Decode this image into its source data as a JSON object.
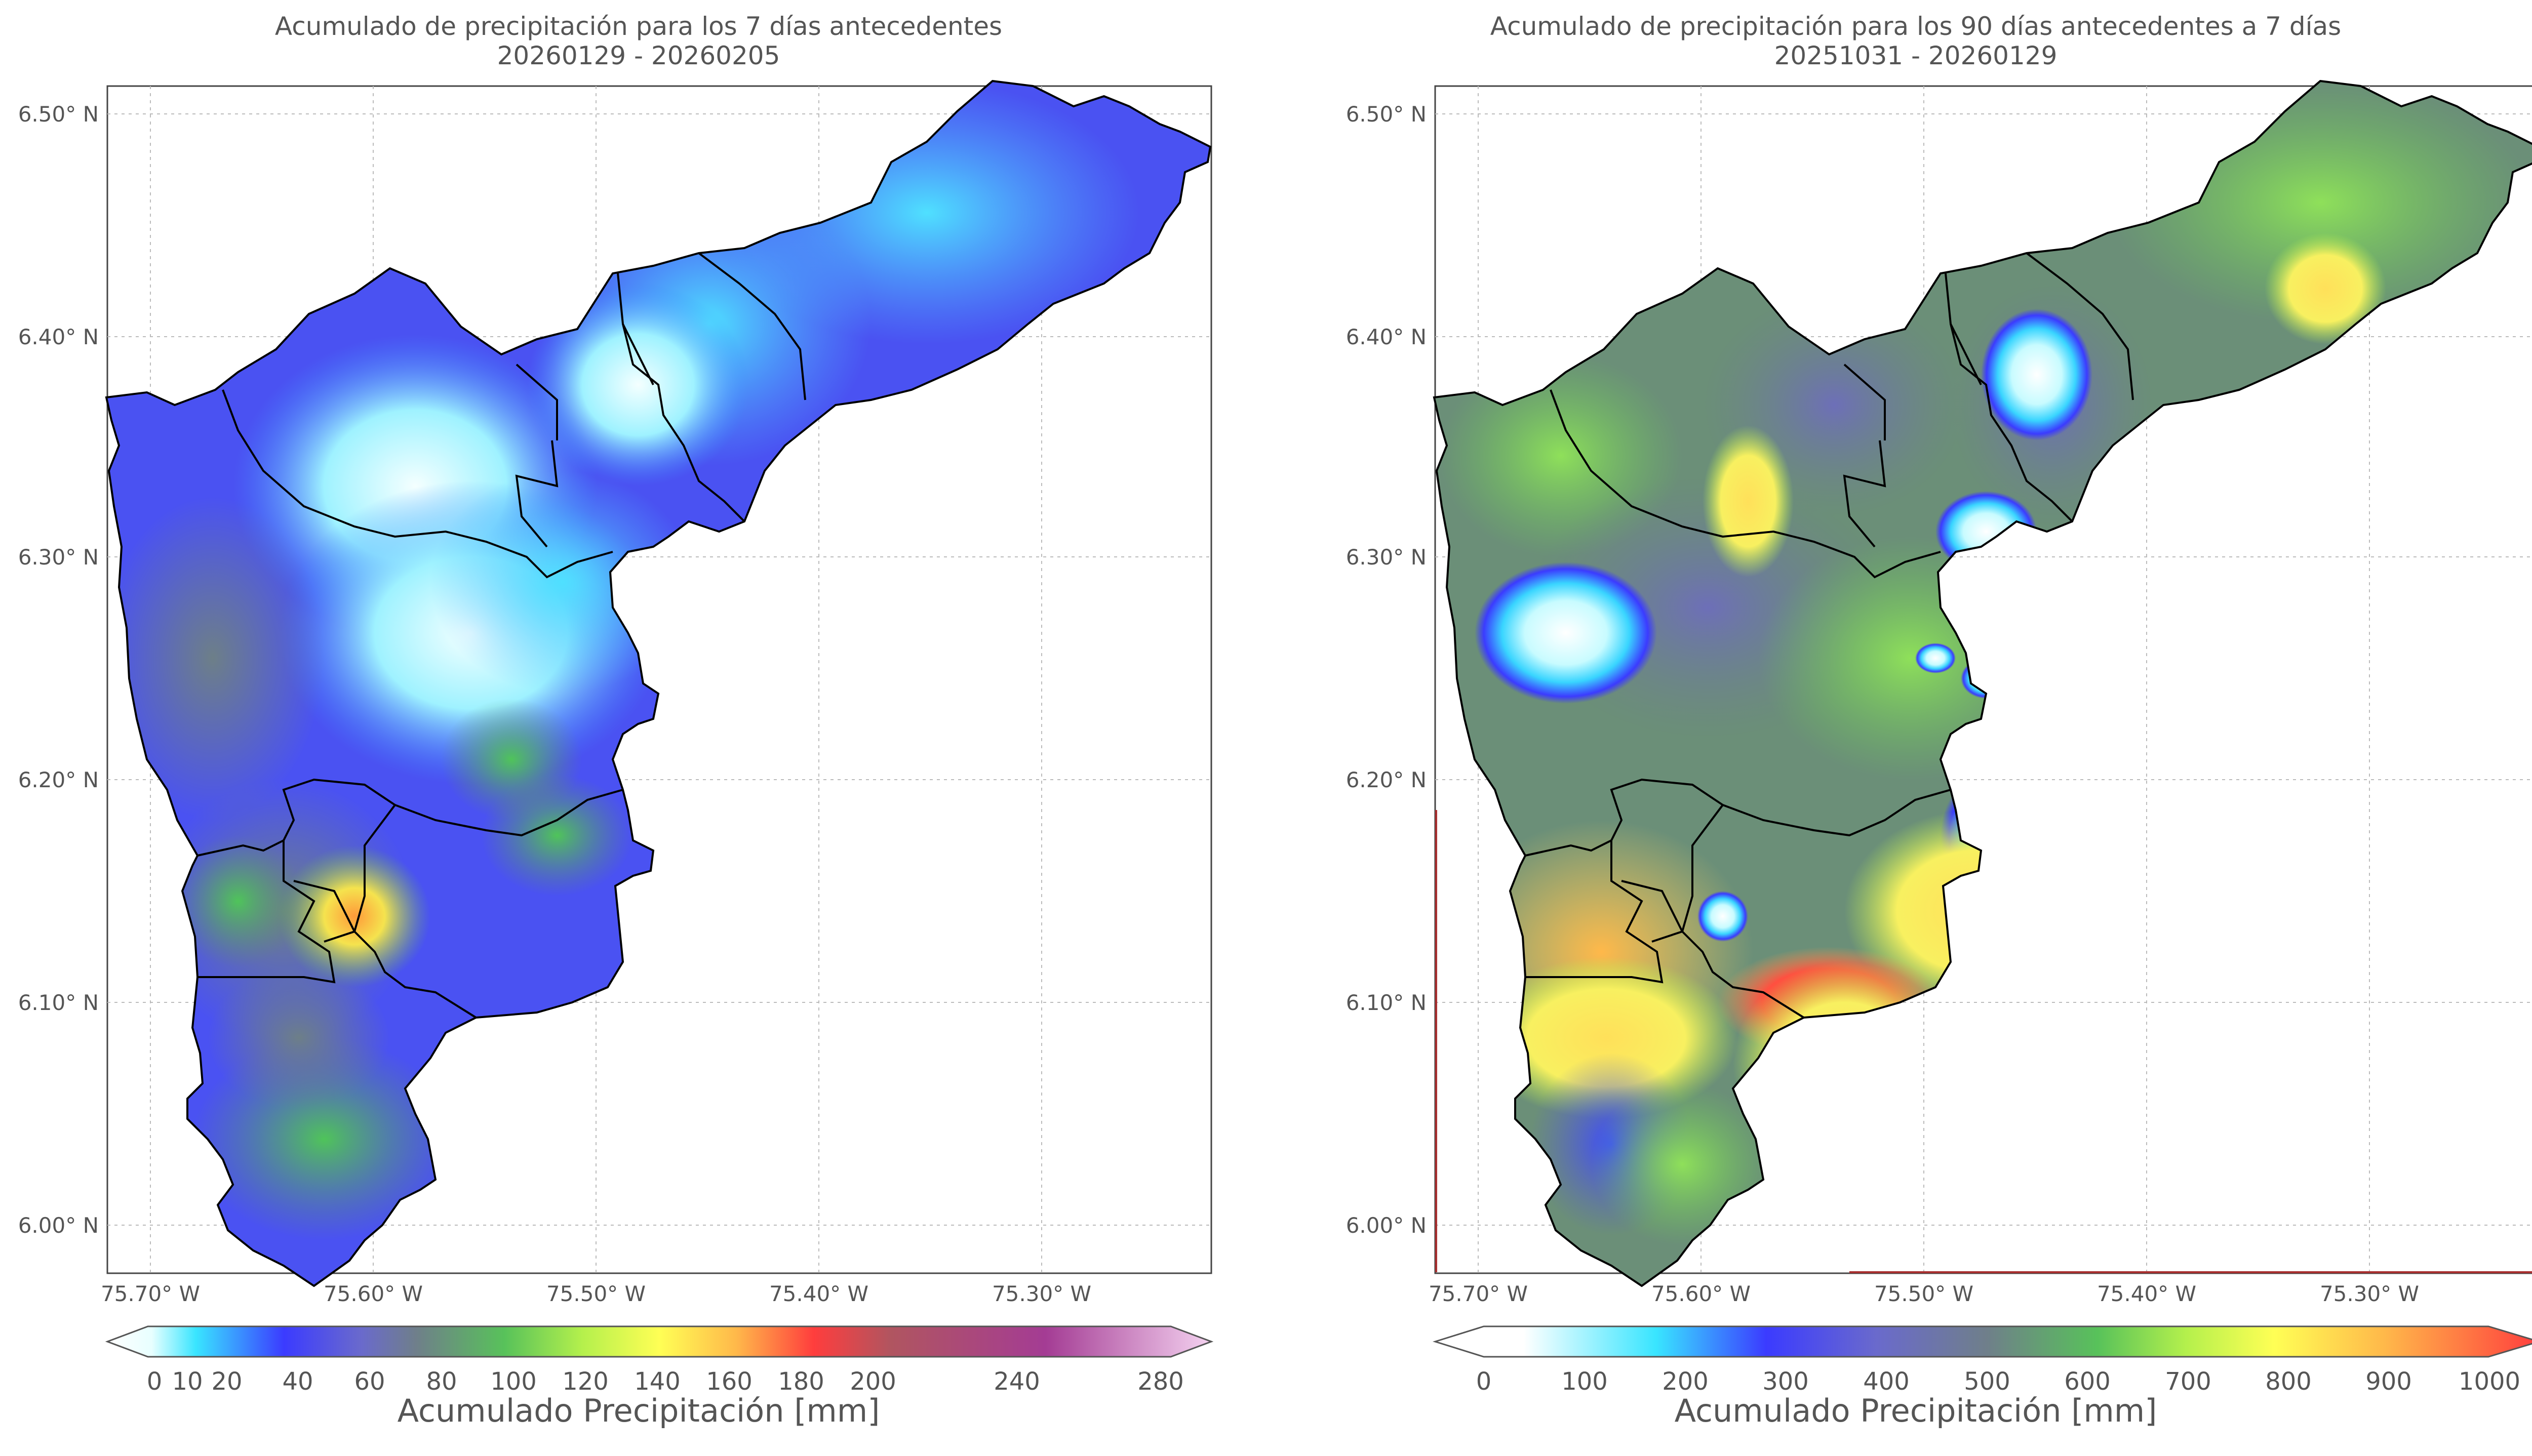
{
  "left_map": {
    "title_line1": "Acumulado de precipitación para los 7 días antecedentes",
    "title_line2": "20260129 - 20260205",
    "lat_ticks": [
      "6.50° N",
      "6.40° N",
      "6.30° N",
      "6.20° N",
      "6.10° N",
      "6.00° N"
    ],
    "lon_ticks": [
      "75.70° W",
      "75.60° W",
      "75.50° W",
      "75.40° W",
      "75.30° W"
    ],
    "colorbar_ticks": [
      "0",
      "10",
      "20",
      "40",
      "60",
      "80",
      "100",
      "120",
      "140",
      "160",
      "180",
      "200",
      "240",
      "280"
    ],
    "colorbar_label": "Acumulado Precipitación [mm]",
    "colorbar_colors": [
      "#ffffff",
      "#e8ffff",
      "#39e5ff",
      "#3b3bff",
      "#6a6acc",
      "#6f7f8a",
      "#58c25a",
      "#b4f04c",
      "#ffff55",
      "#ffb84a",
      "#ff6a3a",
      "#ff3d3d",
      "#b05560",
      "#a43c94",
      "#f4d2f0"
    ]
  },
  "right_map": {
    "title_line1": "Acumulado de precipitación para los 90 días antecedentes a 7 días",
    "title_line2": "20251031 - 20260129",
    "lat_ticks": [
      "6.50° N",
      "6.40° N",
      "6.30° N",
      "6.20° N",
      "6.10° N",
      "6.00° N"
    ],
    "lon_ticks": [
      "75.70° W",
      "75.60° W",
      "75.50° W",
      "75.40° W",
      "75.30° W"
    ],
    "colorbar_ticks": [
      "0",
      "100",
      "200",
      "300",
      "400",
      "500",
      "600",
      "700",
      "800",
      "900",
      "1000"
    ],
    "colorbar_label": "Acumulado Precipitación [mm]",
    "colorbar_colors": [
      "#ffffff",
      "#ddfaff",
      "#39e5ff",
      "#3b3bff",
      "#6a6acc",
      "#6f7f8a",
      "#58c25a",
      "#b4f04c",
      "#ffff55",
      "#ffb84a",
      "#ff3d3d"
    ]
  }
}
